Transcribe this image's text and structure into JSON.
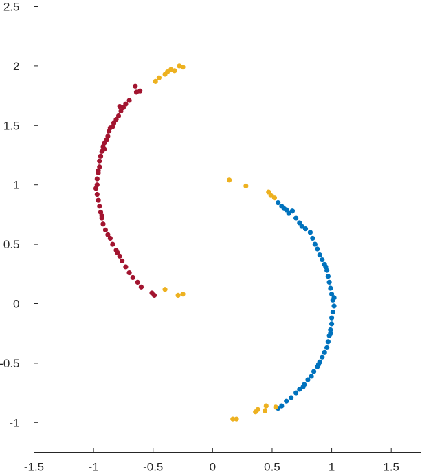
{
  "chart_data": {
    "type": "scatter",
    "title": "",
    "xlabel": "",
    "ylabel": "",
    "xlim": [
      -1.5,
      1.75
    ],
    "ylim": [
      -1.25,
      2.5
    ],
    "xticks": [
      -1.5,
      -1,
      -0.5,
      0,
      0.5,
      1,
      1.5
    ],
    "xtick_labels": [
      "-1.5",
      "-1",
      "-0.5",
      "0",
      "0.5",
      "1",
      "1.5"
    ],
    "yticks": [
      -1,
      -0.5,
      0,
      0.5,
      1,
      1.5,
      2,
      2.5
    ],
    "ytick_labels": [
      "-1",
      "-0.5",
      "0",
      "0.5",
      "1",
      "1.5",
      "2",
      "2.5"
    ],
    "grid": false,
    "legend": false,
    "colors": {
      "red": "#A2142F",
      "blue": "#0072BD",
      "yellow": "#EDB120",
      "axis": "#262626"
    },
    "series": [
      {
        "color": "#A2142F",
        "points": [
          [
            -0.61,
            1.79
          ],
          [
            -0.64,
            1.78
          ],
          [
            -0.65,
            1.83
          ],
          [
            -0.7,
            1.71
          ],
          [
            -0.73,
            1.68
          ],
          [
            -0.75,
            1.65
          ],
          [
            -0.77,
            1.62
          ],
          [
            -0.78,
            1.66
          ],
          [
            -0.79,
            1.58
          ],
          [
            -0.81,
            1.55
          ],
          [
            -0.83,
            1.52
          ],
          [
            -0.84,
            1.49
          ],
          [
            -0.86,
            1.48
          ],
          [
            -0.87,
            1.45
          ],
          [
            -0.88,
            1.41
          ],
          [
            -0.89,
            1.38
          ],
          [
            -0.91,
            1.35
          ],
          [
            -0.92,
            1.32
          ],
          [
            -0.93,
            1.28
          ],
          [
            -0.94,
            1.24
          ],
          [
            -0.95,
            1.2
          ],
          [
            -0.95,
            1.15
          ],
          [
            -0.96,
            1.1
          ],
          [
            -0.97,
            1.05
          ],
          [
            -0.97,
            1.0
          ],
          [
            -0.98,
            0.97
          ],
          [
            -0.97,
            0.92
          ],
          [
            -0.96,
            0.87
          ],
          [
            -0.95,
            0.82
          ],
          [
            -0.94,
            0.77
          ],
          [
            -0.93,
            0.72
          ],
          [
            -0.92,
            0.67
          ],
          [
            -0.9,
            0.62
          ],
          [
            -0.88,
            0.58
          ],
          [
            -0.86,
            0.55
          ],
          [
            -0.84,
            0.5
          ],
          [
            -0.81,
            0.45
          ],
          [
            -0.78,
            0.4
          ],
          [
            -0.76,
            0.36
          ],
          [
            -0.73,
            0.31
          ],
          [
            -0.7,
            0.26
          ],
          [
            -0.67,
            0.22
          ],
          [
            -0.63,
            0.18
          ],
          [
            -0.6,
            0.14
          ],
          [
            -0.51,
            0.09
          ],
          [
            -0.49,
            0.07
          ],
          [
            -0.91,
            1.3
          ],
          [
            -0.93,
            0.74
          ],
          [
            -0.8,
            0.43
          ],
          [
            -0.96,
            1.12
          ]
        ]
      },
      {
        "color": "#0072BD",
        "points": [
          [
            0.55,
            0.85
          ],
          [
            0.58,
            0.82
          ],
          [
            0.62,
            0.79
          ],
          [
            0.64,
            0.76
          ],
          [
            0.67,
            0.78
          ],
          [
            0.7,
            0.72
          ],
          [
            0.73,
            0.68
          ],
          [
            0.75,
            0.65
          ],
          [
            0.78,
            0.63
          ],
          [
            0.82,
            0.6
          ],
          [
            0.84,
            0.55
          ],
          [
            0.86,
            0.5
          ],
          [
            0.88,
            0.46
          ],
          [
            0.9,
            0.41
          ],
          [
            0.92,
            0.37
          ],
          [
            0.94,
            0.33
          ],
          [
            0.96,
            0.28
          ],
          [
            0.97,
            0.23
          ],
          [
            0.98,
            0.18
          ],
          [
            0.99,
            0.13
          ],
          [
            1.0,
            0.08
          ],
          [
            1.01,
            0.03
          ],
          [
            1.02,
            -0.02
          ],
          [
            1.01,
            -0.07
          ],
          [
            1.0,
            -0.12
          ],
          [
            1.0,
            -0.17
          ],
          [
            0.99,
            -0.22
          ],
          [
            0.98,
            -0.27
          ],
          [
            0.97,
            -0.32
          ],
          [
            0.96,
            -0.37
          ],
          [
            0.94,
            -0.41
          ],
          [
            0.92,
            -0.45
          ],
          [
            0.9,
            -0.49
          ],
          [
            0.88,
            -0.53
          ],
          [
            0.85,
            -0.57
          ],
          [
            0.83,
            -0.61
          ],
          [
            0.8,
            -0.64
          ],
          [
            0.77,
            -0.68
          ],
          [
            0.73,
            -0.72
          ],
          [
            0.7,
            -0.75
          ],
          [
            0.66,
            -0.79
          ],
          [
            0.62,
            -0.82
          ],
          [
            0.58,
            -0.86
          ],
          [
            0.55,
            -0.88
          ],
          [
            0.95,
            0.31
          ],
          [
            1.02,
            0.05
          ],
          [
            0.99,
            -0.25
          ],
          [
            0.89,
            -0.51
          ],
          [
            0.76,
            -0.7
          ],
          [
            0.6,
            0.8
          ]
        ]
      },
      {
        "color": "#EDB120",
        "points": [
          [
            -0.28,
            2.0
          ],
          [
            -0.25,
            1.99
          ],
          [
            -0.32,
            1.96
          ],
          [
            -0.35,
            1.97
          ],
          [
            -0.38,
            1.95
          ],
          [
            -0.4,
            1.93
          ],
          [
            -0.45,
            1.9
          ],
          [
            -0.48,
            1.87
          ],
          [
            -0.4,
            0.12
          ],
          [
            -0.29,
            0.07
          ],
          [
            -0.25,
            0.08
          ],
          [
            0.14,
            1.04
          ],
          [
            0.28,
            0.99
          ],
          [
            0.47,
            0.94
          ],
          [
            0.49,
            0.91
          ],
          [
            0.52,
            0.89
          ],
          [
            0.17,
            -0.97
          ],
          [
            0.2,
            -0.97
          ],
          [
            0.36,
            -0.91
          ],
          [
            0.38,
            -0.89
          ],
          [
            0.45,
            -0.86
          ],
          [
            0.44,
            -0.9
          ],
          [
            0.53,
            -0.87
          ]
        ]
      }
    ]
  }
}
